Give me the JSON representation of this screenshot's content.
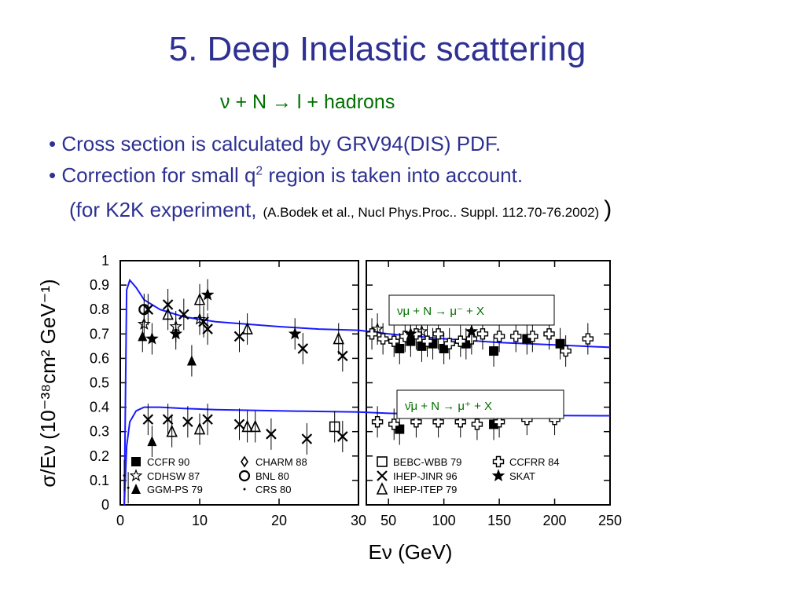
{
  "slide": {
    "title": "5. Deep Inelastic scattering",
    "reaction": "ν + N → l + hadrons",
    "bullet1": "• Cross section is calculated by GRV94(DIS) PDF.",
    "bullet2_pre": "• Correction for small q",
    "bullet2_sup": "2",
    "bullet2_post": " region is taken into account.",
    "bullet3": "(for K2K experiment,",
    "reference": "(A.Bodek et al., Nucl Phys.Proc.. Suppl. 112.70-76.2002)",
    "close_paren": ")"
  },
  "chart_data": {
    "type": "scatter",
    "xlabel": "Eν   (GeV)",
    "ylabel": "σ/Eν (10⁻³⁸cm² GeV⁻¹)",
    "ylim": [
      0,
      1
    ],
    "y_ticks": [
      "0",
      "0.1",
      "0.2",
      "0.3",
      "0.4",
      "0.5",
      "0.6",
      "0.7",
      "0.8",
      "0.9",
      "1"
    ],
    "panels": [
      {
        "name": "left",
        "xlim": [
          0,
          30
        ],
        "x_ticks": [
          "0",
          "10",
          "20",
          "30"
        ]
      },
      {
        "name": "right",
        "xlim": [
          30,
          250
        ],
        "x_ticks": [
          "50",
          "100",
          "150",
          "200",
          "250"
        ]
      }
    ],
    "annotations": [
      {
        "text": "νμ + N → μ⁻ + X",
        "panel": "right"
      },
      {
        "text": "ν̄μ + N → μ⁺ + X",
        "panel": "right"
      }
    ],
    "curves": [
      {
        "name": "neutrino",
        "color": "#1a1aff",
        "x": [
          0.5,
          0.8,
          1.2,
          2,
          3,
          5,
          8,
          12,
          16,
          20,
          25,
          30,
          50,
          100,
          150,
          200,
          250
        ],
        "y": [
          0.0,
          0.88,
          0.92,
          0.89,
          0.84,
          0.8,
          0.77,
          0.75,
          0.74,
          0.73,
          0.72,
          0.715,
          0.7,
          0.68,
          0.665,
          0.655,
          0.645
        ]
      },
      {
        "name": "antineutrino",
        "color": "#1a1aff",
        "x": [
          0.5,
          0.8,
          1.2,
          2,
          3,
          5,
          8,
          12,
          20,
          30,
          50,
          100,
          150,
          200,
          250
        ],
        "y": [
          0.0,
          0.24,
          0.34,
          0.385,
          0.4,
          0.4,
          0.395,
          0.39,
          0.385,
          0.38,
          0.375,
          0.37,
          0.368,
          0.366,
          0.365
        ]
      }
    ],
    "series": [
      {
        "name": "CCFR 90",
        "marker": "square-filled",
        "x": [
          60,
          70,
          80,
          90,
          100,
          120,
          145,
          175,
          205
        ],
        "y": [
          0.64,
          0.67,
          0.65,
          0.66,
          0.64,
          0.66,
          0.63,
          0.68,
          0.66
        ]
      },
      {
        "name": "CCFR 90 (anti)",
        "marker": "square-filled",
        "x": [
          60,
          145
        ],
        "y": [
          0.31,
          0.33
        ]
      },
      {
        "name": "CDHSW 87",
        "marker": "star-open",
        "x": [
          3,
          7,
          10,
          40,
          80,
          125
        ],
        "y": [
          0.74,
          0.73,
          0.76,
          0.72,
          0.71,
          0.71
        ]
      },
      {
        "name": "GGM-PS 79",
        "marker": "triangle-filled",
        "x": [
          2.8,
          9,
          4
        ],
        "y": [
          0.69,
          0.59,
          0.26
        ]
      },
      {
        "name": "CHARM 88",
        "marker": "diamond-open",
        "x": [],
        "y": []
      },
      {
        "name": "BNL 80",
        "marker": "circle-open",
        "x": [
          3
        ],
        "y": [
          0.8
        ]
      },
      {
        "name": "CRS 80",
        "marker": "dot",
        "x": [
          0.5,
          1
        ],
        "y": [
          0.12,
          0.07
        ]
      },
      {
        "name": "BEBC-WBB 79",
        "marker": "square-open",
        "x": [
          27
        ],
        "y": [
          0.32
        ]
      },
      {
        "name": "IHEP-JINR 96",
        "marker": "x",
        "x": [
          3.5,
          6,
          8,
          10.5,
          11,
          15,
          28,
          23,
          3.5,
          6,
          8.5,
          11,
          15,
          19,
          23.5,
          28
        ],
        "y": [
          0.8,
          0.82,
          0.78,
          0.75,
          0.72,
          0.69,
          0.61,
          0.64,
          0.35,
          0.35,
          0.34,
          0.35,
          0.33,
          0.29,
          0.27,
          0.28
        ]
      },
      {
        "name": "IHEP-ITEP 79",
        "marker": "triangle-open",
        "x": [
          6,
          10,
          16,
          27.5,
          10,
          16,
          17,
          6.5
        ],
        "y": [
          0.78,
          0.84,
          0.72,
          0.68,
          0.31,
          0.32,
          0.32,
          0.3
        ]
      },
      {
        "name": "CCFRR 84",
        "marker": "cross-open",
        "x": [
          35,
          45,
          55,
          65,
          75,
          85,
          95,
          105,
          115,
          125,
          135,
          150,
          165,
          180,
          195,
          210,
          230,
          40,
          55,
          75,
          95,
          115,
          130,
          150,
          175,
          200
        ],
        "y": [
          0.7,
          0.68,
          0.67,
          0.69,
          0.7,
          0.67,
          0.7,
          0.66,
          0.67,
          0.68,
          0.7,
          0.69,
          0.69,
          0.69,
          0.7,
          0.63,
          0.68,
          0.34,
          0.33,
          0.34,
          0.34,
          0.34,
          0.33,
          0.34,
          0.35,
          0.35
        ]
      },
      {
        "name": "SKAT",
        "marker": "star-filled",
        "x": [
          4,
          7,
          11,
          22,
          70,
          125
        ],
        "y": [
          0.68,
          0.7,
          0.86,
          0.7,
          0.7,
          0.71
        ]
      }
    ],
    "legend": [
      [
        "CCFR 90",
        "CHARM 88",
        "BEBC-WBB 79",
        "CCFRR 84"
      ],
      [
        "CDHSW 87",
        "BNL 80",
        "IHEP-JINR 96",
        "SKAT"
      ],
      [
        "GGM-PS 79",
        "CRS 80",
        "IHEP-ITEP 79",
        ""
      ]
    ]
  }
}
